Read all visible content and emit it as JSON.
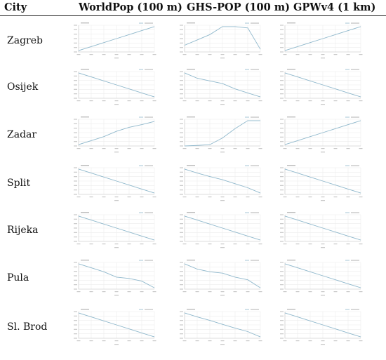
{
  "header": {
    "city": "City",
    "worldpop": "WorldPop (100 m)",
    "ghspop": "GHS-POP (100 m)",
    "gpw": "GPWv4 (1 km)"
  },
  "colors": {
    "line": "#8fb8cc",
    "grid": "#ececec",
    "axis": "#d4d4d4",
    "text": "#111111"
  },
  "rows": [
    {
      "city": "Zagreb"
    },
    {
      "city": "Osijek"
    },
    {
      "city": "Zadar"
    },
    {
      "city": "Split"
    },
    {
      "city": "Rijeka"
    },
    {
      "city": "Pula"
    },
    {
      "city": "Sl. Brod"
    }
  ],
  "chart_data": {
    "type": "line",
    "note_values": "Each panel is one small line chart (grid of 7 cities x 3 datasets). Tick labels, titles and legends are illegibly small; values are relative levels estimated on a 0-1 scale over 7 equally spaced x positions.",
    "x": [
      1,
      2,
      3,
      4,
      5,
      6,
      7
    ],
    "ylim": [
      0,
      1
    ],
    "columns": [
      "WorldPop (100 m)",
      "GHS-POP (100 m)",
      "GPWv4 (1 km)"
    ],
    "panels": [
      [
        [
          0.05,
          0.2,
          0.35,
          0.5,
          0.65,
          0.8,
          0.95
        ],
        [
          0.25,
          0.45,
          0.65,
          0.95,
          0.95,
          0.9,
          0.1
        ],
        [
          0.05,
          0.2,
          0.35,
          0.5,
          0.65,
          0.8,
          0.95
        ]
      ],
      [
        [
          0.95,
          0.8,
          0.65,
          0.5,
          0.35,
          0.2,
          0.05
        ],
        [
          0.95,
          0.75,
          0.65,
          0.55,
          0.35,
          0.2,
          0.05
        ],
        [
          0.95,
          0.8,
          0.65,
          0.5,
          0.35,
          0.2,
          0.05
        ]
      ],
      [
        [
          0.05,
          0.2,
          0.35,
          0.55,
          0.7,
          0.8,
          0.92
        ],
        [
          0.0,
          0.02,
          0.05,
          0.3,
          0.65,
          0.95,
          0.95
        ],
        [
          0.05,
          0.2,
          0.35,
          0.5,
          0.65,
          0.8,
          0.95
        ]
      ],
      [
        [
          0.95,
          0.8,
          0.65,
          0.5,
          0.35,
          0.2,
          0.05
        ],
        [
          0.95,
          0.8,
          0.67,
          0.55,
          0.4,
          0.25,
          0.05
        ],
        [
          0.95,
          0.8,
          0.65,
          0.5,
          0.35,
          0.2,
          0.05
        ]
      ],
      [
        [
          0.95,
          0.8,
          0.65,
          0.5,
          0.35,
          0.2,
          0.05
        ],
        [
          0.95,
          0.8,
          0.65,
          0.5,
          0.35,
          0.2,
          0.05
        ],
        [
          0.95,
          0.8,
          0.65,
          0.5,
          0.35,
          0.2,
          0.05
        ]
      ],
      [
        [
          0.95,
          0.8,
          0.65,
          0.45,
          0.4,
          0.3,
          0.05
        ],
        [
          0.95,
          0.75,
          0.65,
          0.6,
          0.45,
          0.35,
          0.05
        ],
        [
          0.95,
          0.8,
          0.65,
          0.5,
          0.35,
          0.2,
          0.05
        ]
      ],
      [
        [
          0.95,
          0.8,
          0.65,
          0.5,
          0.35,
          0.2,
          0.05
        ],
        [
          0.95,
          0.8,
          0.67,
          0.52,
          0.38,
          0.25,
          0.05
        ],
        [
          0.95,
          0.8,
          0.65,
          0.5,
          0.35,
          0.2,
          0.05
        ]
      ]
    ]
  }
}
